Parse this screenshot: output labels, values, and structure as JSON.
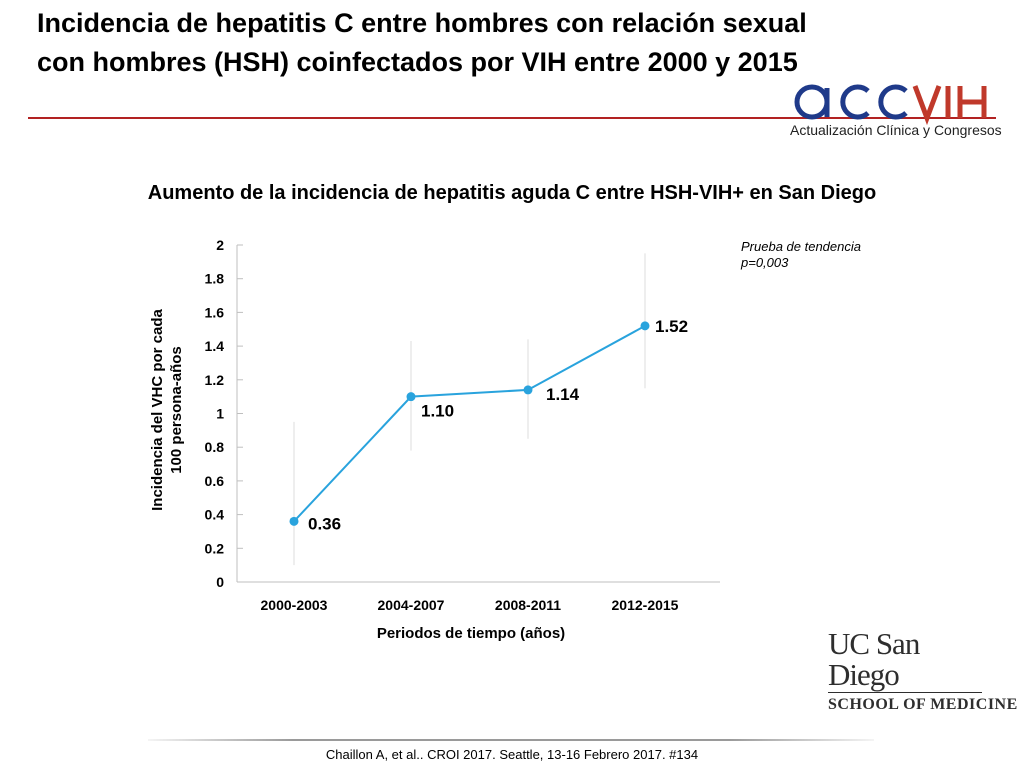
{
  "slide": {
    "title": "Incidencia de hepatitis C entre hombres con relación sexual con hombres (HSH) coinfectados por VIH entre 2000 y 2015",
    "accent_color": "#b22222"
  },
  "logos": {
    "acc_vih": {
      "text": "acc VIH",
      "subtitle": "Actualización Clínica y Congresos",
      "blue": "#1f3a8a",
      "red": "#c0392b"
    },
    "ucsd": {
      "line1": "UC San Diego",
      "line2": "SCHOOL OF MEDICINE"
    }
  },
  "chart_data": {
    "type": "line",
    "title": "Aumento de la incidencia de hepatitis aguda C entre HSH-VIH+ en San Diego",
    "categories": [
      "2000-2003",
      "2004-2007",
      "2008-2011",
      "2012-2015"
    ],
    "series": [
      {
        "values": [
          0.36,
          1.1,
          1.14,
          1.52
        ],
        "value_labels": [
          "0.36",
          "1.10",
          "1.14",
          "1.52"
        ],
        "color": "#29a3dd"
      }
    ],
    "error_bars": [
      [
        0.1,
        0.95
      ],
      [
        0.78,
        1.43
      ],
      [
        0.85,
        1.44
      ],
      [
        1.15,
        1.95
      ]
    ],
    "xlabel": "Periodos de tiempo (años)",
    "ylabel_lines": [
      "Incidencia del VHC por cada",
      "100 persona-años"
    ],
    "ylim": [
      0,
      2
    ],
    "yticks": [
      "0",
      "0.2",
      "0.4",
      "0.6",
      "0.8",
      "1",
      "1.2",
      "1.4",
      "1.6",
      "1.8",
      "2"
    ],
    "annotation": [
      "Prueba de tendencia",
      "p=0,003"
    ],
    "grid": false
  },
  "citation": "Chaillon A, et al.. CROI 2017. Seattle, 13-16 Febrero 2017. #134"
}
